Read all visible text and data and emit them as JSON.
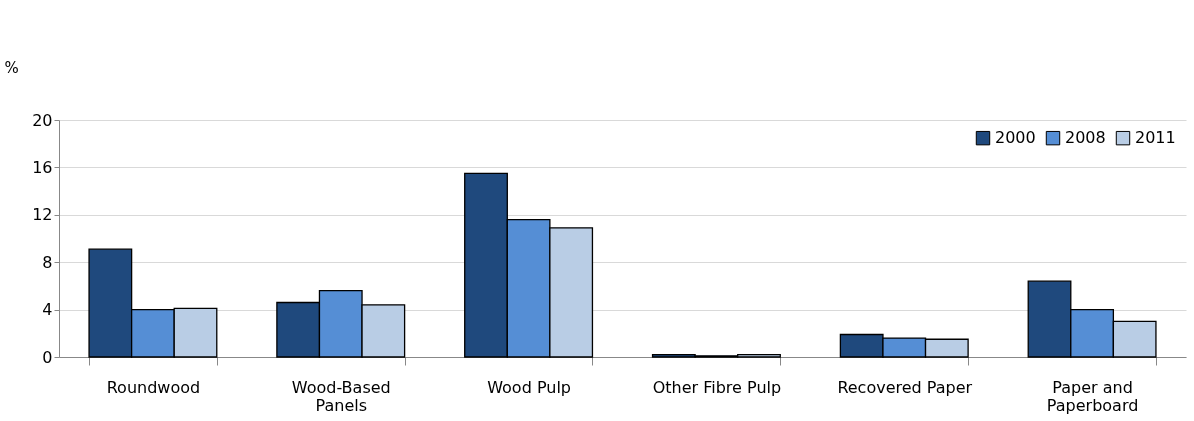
{
  "chart_data": {
    "type": "bar",
    "ylabel": "%",
    "categories": [
      "Roundwood",
      "Wood-Based Panels",
      "Wood Pulp",
      "Other Fibre Pulp",
      "Recovered Paper",
      "Paper and Paperboard"
    ],
    "series": [
      {
        "name": "2000",
        "color": "#1f497d",
        "values": [
          9.1,
          4.6,
          15.5,
          0.2,
          1.9,
          6.4
        ]
      },
      {
        "name": "2008",
        "color": "#558ed5",
        "values": [
          4.0,
          5.6,
          11.6,
          0.1,
          1.6,
          4.0
        ]
      },
      {
        "name": "2011",
        "color": "#b9cde5",
        "values": [
          4.1,
          4.4,
          10.9,
          0.2,
          1.5,
          3.0
        ]
      }
    ],
    "ylim": [
      0,
      20
    ],
    "yticks": [
      0,
      4,
      8,
      12,
      16,
      20
    ],
    "grid": "y",
    "legend": "top right"
  }
}
